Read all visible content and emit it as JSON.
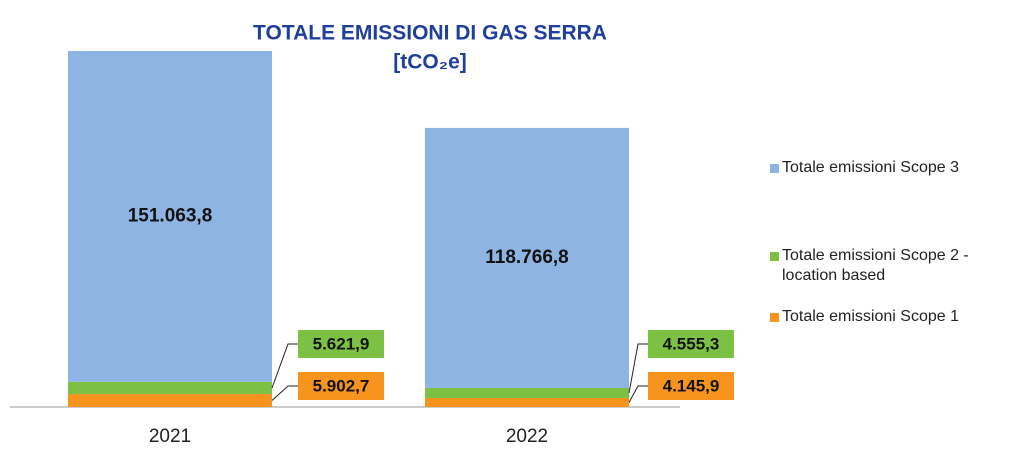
{
  "chart_data": {
    "type": "stacked_bar",
    "title": "TOTALE EMISSIONI DI GAS SERRA",
    "subtitle": "[tCO₂e]",
    "categories": [
      "2021",
      "2022"
    ],
    "series": [
      {
        "name": "Totale emissioni Scope 1",
        "color": "#f7941d",
        "values": [
          5902.7,
          4145.9
        ],
        "value_labels": [
          "5.902,7",
          "4.145,9"
        ]
      },
      {
        "name": "Totale emissioni Scope 2 - location based",
        "color": "#7cc144",
        "values": [
          5621.9,
          4555.3
        ],
        "value_labels": [
          "5.621,9",
          "4.555,3"
        ]
      },
      {
        "name": "Totale emissioni Scope 3",
        "color": "#8eb4e3",
        "values": [
          151063.8,
          118766.8
        ],
        "value_labels": [
          "151.063,8",
          "118.766,8"
        ]
      }
    ],
    "legend": "right"
  }
}
